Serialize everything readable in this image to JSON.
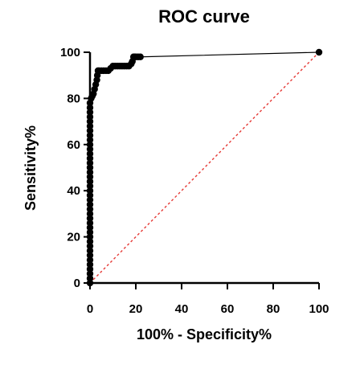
{
  "chart_data": {
    "type": "line",
    "title": "ROC curve",
    "xlabel": "100% - Specificity%",
    "ylabel": "Sensitivity%",
    "xlim": [
      0,
      100
    ],
    "ylim": [
      0,
      100
    ],
    "x_ticks": [
      "0",
      "20",
      "40",
      "60",
      "80",
      "100"
    ],
    "y_ticks": [
      "0",
      "20",
      "40",
      "60",
      "80",
      "100"
    ],
    "grid": false,
    "legend": "none",
    "series": [
      {
        "type": "line-with-markers",
        "color": "#000000",
        "x": [
          0,
          0,
          0,
          0,
          0,
          0,
          0,
          0,
          0,
          0,
          0,
          0,
          0,
          0,
          0,
          0,
          0,
          0,
          0,
          0,
          0,
          0,
          0,
          0,
          0,
          0,
          0,
          0,
          0,
          0,
          0,
          0,
          0,
          0,
          0,
          0,
          0,
          0,
          0,
          0,
          0.5,
          1,
          1.5,
          2,
          2.5,
          3,
          3.2,
          3.5,
          4,
          5,
          6,
          7,
          8,
          9,
          10,
          11,
          12,
          13,
          14,
          15,
          16,
          17,
          18,
          18.5,
          19,
          19.5,
          20,
          21,
          22,
          100
        ],
        "y": [
          0,
          2,
          4,
          6,
          8,
          10,
          12,
          14,
          16,
          18,
          20,
          22,
          24,
          26,
          28,
          30,
          32,
          34,
          36,
          38,
          40,
          42,
          44,
          46,
          48,
          50,
          52,
          54,
          56,
          58,
          60,
          62,
          64,
          66,
          68,
          70,
          72,
          74,
          76,
          78,
          80,
          81,
          82,
          84,
          86,
          88,
          90,
          92,
          92,
          92,
          92,
          92,
          92,
          93,
          94,
          94,
          94,
          94,
          94,
          94,
          94,
          94,
          95,
          96,
          98,
          98,
          98,
          98,
          98,
          100
        ]
      },
      {
        "type": "reference-line",
        "color": "#e53935",
        "style": "dashed",
        "x": [
          0,
          100
        ],
        "y": [
          0,
          100
        ]
      }
    ]
  }
}
